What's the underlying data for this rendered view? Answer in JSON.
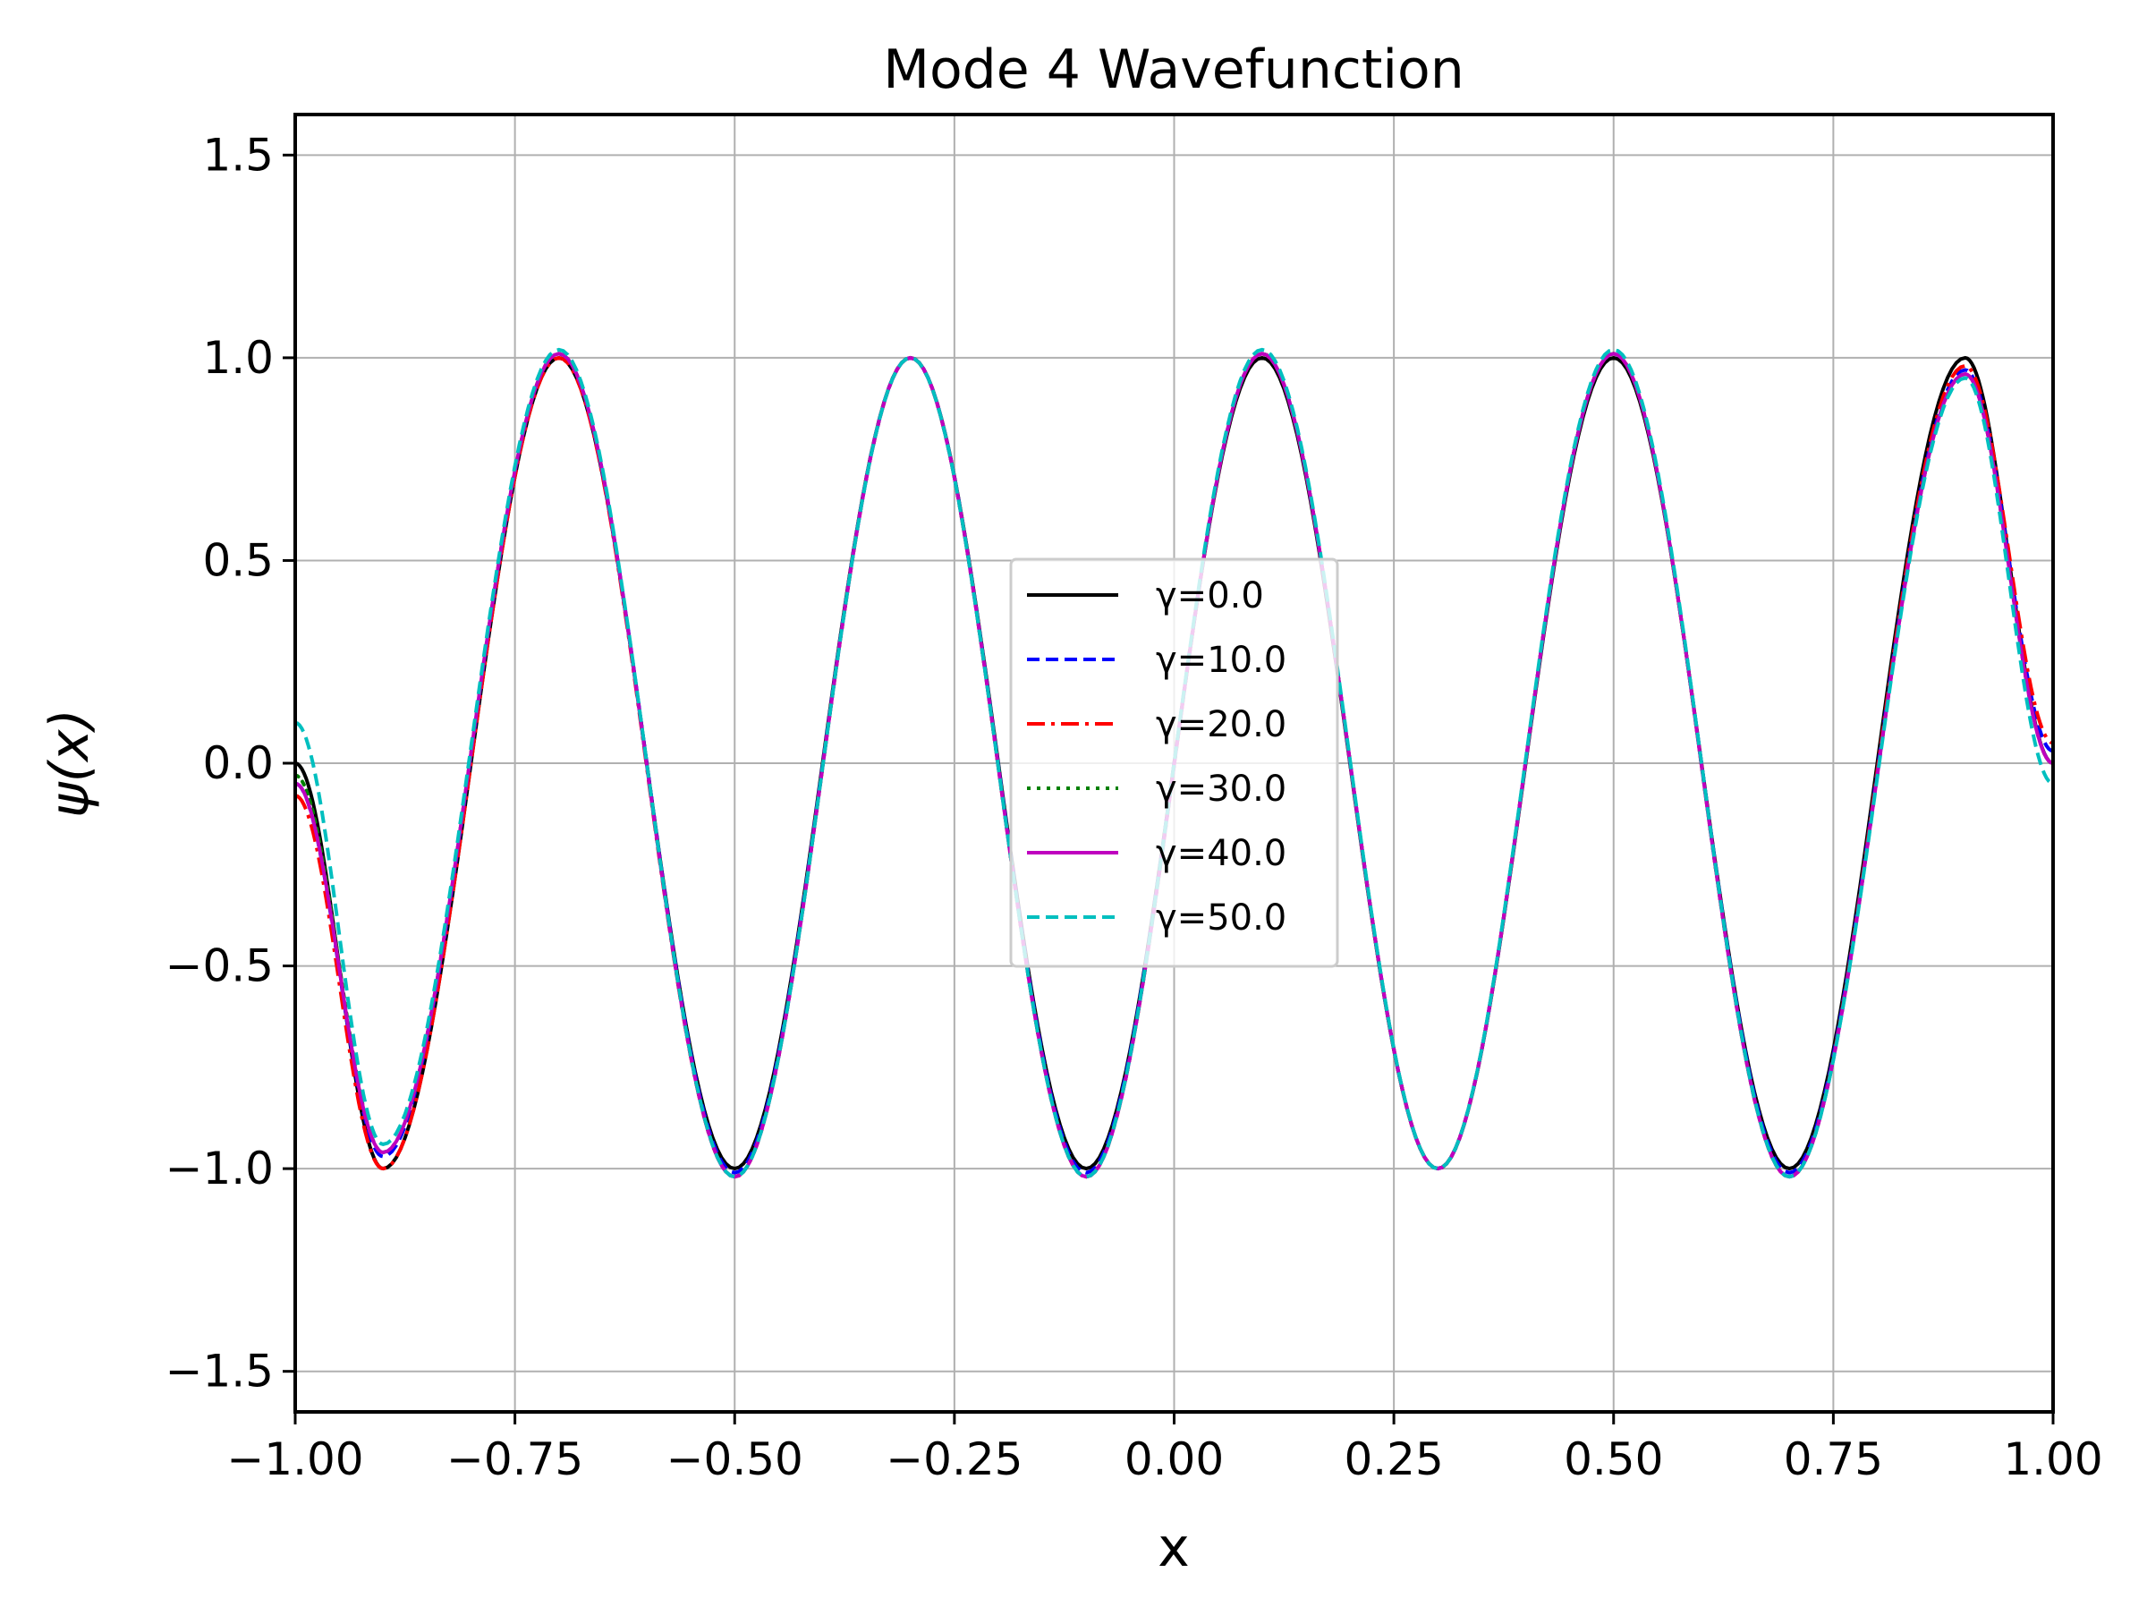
{
  "chart_data": {
    "type": "line",
    "title": "Mode 4 Wavefunction",
    "xlabel": "x",
    "ylabel": "ψ(x)",
    "xlim": [
      -1.0,
      1.0
    ],
    "ylim": [
      -1.6,
      1.6
    ],
    "xticks": [
      -1.0,
      -0.75,
      -0.5,
      -0.25,
      0.0,
      0.25,
      0.5,
      0.75,
      1.0
    ],
    "xtick_labels": [
      "−1.00",
      "−0.75",
      "−0.50",
      "−0.25",
      "0.00",
      "0.25",
      "0.50",
      "0.75",
      "1.00"
    ],
    "yticks": [
      -1.5,
      -1.0,
      -0.5,
      0.0,
      0.5,
      1.0,
      1.5
    ],
    "ytick_labels": [
      "−1.5",
      "−1.0",
      "−0.5",
      "0.0",
      "0.5",
      "1.0",
      "1.5"
    ],
    "grid": true,
    "legend_position": "center",
    "x": [
      -1.0,
      -0.9,
      -0.7,
      -0.5,
      -0.3,
      -0.1,
      0.1,
      0.3,
      0.5,
      0.7,
      0.9,
      1.0
    ],
    "series": [
      {
        "name": "γ=0.0",
        "color": "#000000",
        "style": "solid",
        "values": [
          0.0,
          -1.0,
          1.0,
          -1.0,
          1.0,
          -1.0,
          1.0,
          -1.0,
          1.0,
          -1.0,
          1.0,
          0.0
        ]
      },
      {
        "name": "γ=10.0",
        "color": "#0000ff",
        "style": "dashed",
        "values": [
          -0.05,
          -0.97,
          1.01,
          -1.01,
          1.0,
          -1.01,
          1.01,
          -1.0,
          1.01,
          -1.01,
          0.97,
          0.03
        ]
      },
      {
        "name": "γ=20.0",
        "color": "#ff0000",
        "style": "dashdot",
        "values": [
          -0.08,
          -1.0,
          1.0,
          -1.02,
          1.0,
          -1.02,
          1.01,
          -1.0,
          1.01,
          -1.02,
          0.98,
          0.05
        ]
      },
      {
        "name": "γ=30.0",
        "color": "#008000",
        "style": "dotted",
        "values": [
          -0.03,
          -0.96,
          1.01,
          -1.02,
          1.0,
          -1.02,
          1.01,
          -1.0,
          1.01,
          -1.02,
          0.96,
          0.0
        ]
      },
      {
        "name": "γ=40.0",
        "color": "#bf00bf",
        "style": "solid",
        "values": [
          -0.05,
          -0.96,
          1.01,
          -1.02,
          1.0,
          -1.02,
          1.01,
          -1.0,
          1.01,
          -1.02,
          0.96,
          0.0
        ]
      },
      {
        "name": "γ=50.0",
        "color": "#00bfbf",
        "style": "dashed",
        "values": [
          0.1,
          -0.94,
          1.02,
          -1.02,
          1.0,
          -1.02,
          1.02,
          -1.0,
          1.02,
          -1.02,
          0.95,
          -0.05
        ]
      }
    ]
  }
}
